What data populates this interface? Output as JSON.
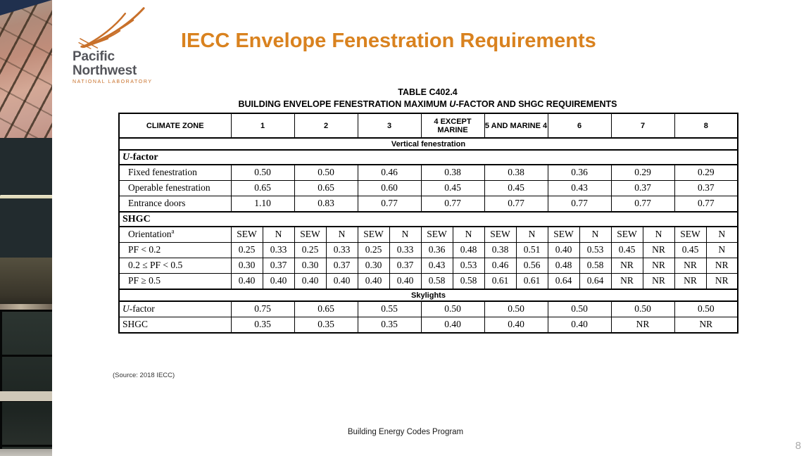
{
  "colors": {
    "title": "#D9821F",
    "logo_orange": "#C8702A",
    "logo_gray": "#54555B",
    "page_number": "#ABABAB",
    "table_border": "#000000"
  },
  "logo": {
    "name_line1": "Pacific",
    "name_line2": "Northwest",
    "sub_line": "NATIONAL LABORATORY"
  },
  "title": "IECC Envelope Fenestration Requirements",
  "table_caption": {
    "line1": "TABLE C402.4",
    "line2_pre": "BUILDING ENVELOPE FENESTRATION MAXIMUM ",
    "line2_italic": "U",
    "line2_post": "-FACTOR AND SHGC REQUIREMENTS"
  },
  "table": {
    "corner_label": "CLIMATE ZONE",
    "zones": [
      "1",
      "2",
      "3",
      "4 EXCEPT MARINE",
      "5 AND MARINE 4",
      "6",
      "7",
      "8"
    ],
    "rows": [
      {
        "kind": "span",
        "text": "Vertical fenestration"
      },
      {
        "kind": "heading",
        "italic": "U",
        "rest": "-factor"
      },
      {
        "kind": "data8",
        "label": "Fixed fenestration",
        "values": [
          "0.50",
          "0.50",
          "0.46",
          "0.38",
          "0.38",
          "0.36",
          "0.29",
          "0.29"
        ]
      },
      {
        "kind": "data8",
        "label": "Operable fenestration",
        "values": [
          "0.65",
          "0.65",
          "0.60",
          "0.45",
          "0.45",
          "0.43",
          "0.37",
          "0.37"
        ]
      },
      {
        "kind": "data8",
        "label": "Entrance doors",
        "values": [
          "1.10",
          "0.83",
          "0.77",
          "0.77",
          "0.77",
          "0.77",
          "0.77",
          "0.77"
        ]
      },
      {
        "kind": "heading",
        "italic": "",
        "rest": "SHGC"
      },
      {
        "kind": "data16",
        "label": "Orientation",
        "label_sup": "a",
        "values": [
          "SEW",
          "N",
          "SEW",
          "N",
          "SEW",
          "N",
          "SEW",
          "N",
          "SEW",
          "N",
          "SEW",
          "N",
          "SEW",
          "N",
          "SEW",
          "N"
        ]
      },
      {
        "kind": "data16",
        "label": "PF < 0.2",
        "values": [
          "0.25",
          "0.33",
          "0.25",
          "0.33",
          "0.25",
          "0.33",
          "0.36",
          "0.48",
          "0.38",
          "0.51",
          "0.40",
          "0.53",
          "0.45",
          "NR",
          "0.45",
          "N"
        ]
      },
      {
        "kind": "data16",
        "label": "0.2 ≤ PF < 0.5",
        "values": [
          "0.30",
          "0.37",
          "0.30",
          "0.37",
          "0.30",
          "0.37",
          "0.43",
          "0.53",
          "0.46",
          "0.56",
          "0.48",
          "0.58",
          "NR",
          "NR",
          "NR",
          "NR"
        ]
      },
      {
        "kind": "data16",
        "label": "PF ≥ 0.5",
        "values": [
          "0.40",
          "0.40",
          "0.40",
          "0.40",
          "0.40",
          "0.40",
          "0.58",
          "0.58",
          "0.61",
          "0.61",
          "0.64",
          "0.64",
          "NR",
          "NR",
          "NR",
          "NR"
        ]
      },
      {
        "kind": "span",
        "text": "Skylights"
      },
      {
        "kind": "data8",
        "label_italic": "U",
        "label": "-factor",
        "indent": false,
        "values": [
          "0.75",
          "0.65",
          "0.55",
          "0.50",
          "0.50",
          "0.50",
          "0.50",
          "0.50"
        ]
      },
      {
        "kind": "data8",
        "label": "SHGC",
        "indent": false,
        "values": [
          "0.35",
          "0.35",
          "0.35",
          "0.40",
          "0.40",
          "0.40",
          "NR",
          "NR"
        ]
      }
    ]
  },
  "source_note": "(Source: 2018 IECC)",
  "footer": "Building Energy Codes Program",
  "page_number": "8"
}
